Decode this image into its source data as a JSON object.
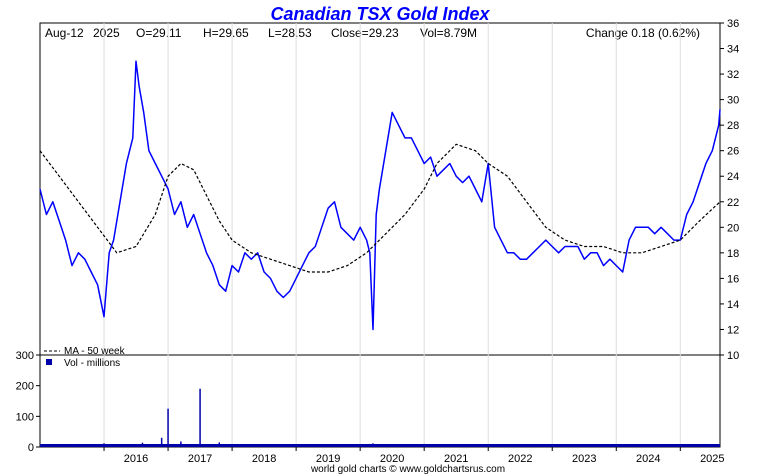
{
  "chart_data": {
    "type": "line",
    "title": "Canadian TSX Gold Index",
    "header": {
      "date": "Aug-12",
      "year": "2025",
      "open": "O=29.11",
      "high": "H=29.65",
      "low": "L=28.53",
      "close": "Close=29.23",
      "volume": "Vol=8.79M",
      "change": "Change 0.18 (0.62%)"
    },
    "colors": {
      "price": "#0000ff",
      "volume": "#0000aa",
      "ma": "#000000",
      "title": "#0000ff"
    },
    "x_tick_labels": [
      "2016",
      "2017",
      "2018",
      "2019",
      "2020",
      "2021",
      "2022",
      "2023",
      "2024",
      "2025"
    ],
    "x_range": [
      2015.0,
      2025.62
    ],
    "price_axis": {
      "ylim": [
        10,
        36
      ],
      "tick_labels": [
        "10",
        "12",
        "14",
        "16",
        "18",
        "20",
        "22",
        "24",
        "26",
        "28",
        "30",
        "32",
        "34",
        "36"
      ]
    },
    "volume_axis": {
      "ylim": [
        0,
        300
      ],
      "tick_labels": [
        "0",
        "100",
        "200",
        "300"
      ]
    },
    "legend": {
      "ma_label": "MA - 50 week",
      "vol_label": "Vol - millions",
      "position": "bottom-left"
    },
    "series": [
      {
        "name": "",
        "kind": "price",
        "x": [
          2015.0,
          2015.1,
          2015.2,
          2015.3,
          2015.4,
          2015.5,
          2015.6,
          2015.7,
          2015.8,
          2015.9,
          2016.0,
          2016.08,
          2016.15,
          2016.25,
          2016.35,
          2016.45,
          2016.5,
          2016.55,
          2016.62,
          2016.7,
          2016.8,
          2016.9,
          2017.0,
          2017.1,
          2017.2,
          2017.3,
          2017.4,
          2017.5,
          2017.6,
          2017.7,
          2017.8,
          2017.9,
          2018.0,
          2018.1,
          2018.2,
          2018.3,
          2018.4,
          2018.5,
          2018.6,
          2018.7,
          2018.8,
          2018.9,
          2019.0,
          2019.1,
          2019.2,
          2019.3,
          2019.4,
          2019.5,
          2019.6,
          2019.7,
          2019.8,
          2019.9,
          2020.0,
          2020.1,
          2020.15,
          2020.2,
          2020.25,
          2020.3,
          2020.4,
          2020.5,
          2020.6,
          2020.7,
          2020.8,
          2020.9,
          2021.0,
          2021.1,
          2021.2,
          2021.3,
          2021.4,
          2021.5,
          2021.6,
          2021.7,
          2021.8,
          2021.9,
          2022.0,
          2022.1,
          2022.2,
          2022.3,
          2022.4,
          2022.5,
          2022.6,
          2022.7,
          2022.8,
          2022.9,
          2023.0,
          2023.1,
          2023.2,
          2023.3,
          2023.4,
          2023.5,
          2023.6,
          2023.7,
          2023.8,
          2023.9,
          2024.0,
          2024.1,
          2024.2,
          2024.3,
          2024.4,
          2024.5,
          2024.6,
          2024.7,
          2024.8,
          2024.9,
          2025.0,
          2025.1,
          2025.2,
          2025.3,
          2025.4,
          2025.5,
          2025.55,
          2025.6,
          2025.62
        ],
        "y": [
          23,
          21,
          22,
          20.5,
          19,
          17,
          18,
          17.5,
          16.5,
          15.5,
          13,
          18,
          19,
          22,
          25,
          27,
          33,
          31,
          29,
          26,
          25,
          24,
          23,
          21,
          22,
          20,
          21,
          19.5,
          18,
          17,
          15.5,
          15,
          17,
          16.5,
          18,
          17.5,
          18,
          16.5,
          16,
          15,
          14.5,
          15,
          16,
          17,
          18,
          18.5,
          20,
          21.5,
          22,
          20,
          19.5,
          19,
          20,
          19,
          18,
          12,
          21,
          23,
          26,
          29,
          28,
          27,
          27,
          26,
          25,
          25.5,
          24,
          24.5,
          25,
          24,
          23.5,
          24,
          23,
          22,
          25,
          20,
          19,
          18,
          18,
          17.5,
          17.5,
          18,
          18.5,
          19,
          18.5,
          18,
          18.5,
          18.5,
          18.5,
          17.5,
          18,
          18,
          17,
          17.5,
          17,
          16.5,
          19,
          20,
          20,
          20,
          19.5,
          20,
          19.5,
          19,
          19,
          21,
          22,
          23.5,
          25,
          26,
          27,
          28,
          29.23
        ]
      },
      {
        "name": "MA - 50 week",
        "kind": "moving_average",
        "x": [
          2015.0,
          2015.3,
          2015.6,
          2015.9,
          2016.2,
          2016.5,
          2016.8,
          2017.0,
          2017.2,
          2017.4,
          2017.6,
          2017.8,
          2018.0,
          2018.3,
          2018.6,
          2018.9,
          2019.2,
          2019.5,
          2019.8,
          2020.1,
          2020.4,
          2020.7,
          2021.0,
          2021.2,
          2021.5,
          2021.8,
          2022.0,
          2022.3,
          2022.6,
          2022.9,
          2023.2,
          2023.5,
          2023.8,
          2024.1,
          2024.4,
          2024.7,
          2025.0,
          2025.3,
          2025.62
        ],
        "y": [
          26,
          24,
          22,
          20,
          18,
          18.5,
          21,
          24,
          25,
          24.5,
          22.5,
          20.5,
          19,
          18,
          17.5,
          17,
          16.5,
          16.5,
          17,
          18,
          19.5,
          21,
          23,
          25,
          26.5,
          26,
          25,
          24,
          22,
          20,
          19,
          18.5,
          18.5,
          18,
          18,
          18.5,
          19,
          20.5,
          22
        ]
      },
      {
        "name": "Vol - millions",
        "kind": "volume",
        "x": [
          2015.2,
          2015.6,
          2016.0,
          2016.3,
          2016.6,
          2016.9,
          2017.0,
          2017.2,
          2017.5,
          2017.8,
          2018.2,
          2018.6,
          2019.0,
          2019.4,
          2019.8,
          2020.2,
          2020.6,
          2021.0,
          2021.4,
          2021.8,
          2022.2,
          2022.6,
          2023.0,
          2023.4,
          2023.8,
          2024.2,
          2024.6,
          2025.0,
          2025.4
        ],
        "y": [
          8,
          10,
          12,
          9,
          14,
          30,
          125,
          18,
          190,
          15,
          8,
          7,
          6,
          7,
          6,
          12,
          8,
          10,
          9,
          8,
          9,
          7,
          7,
          6,
          7,
          6,
          7,
          8,
          10
        ]
      }
    ],
    "annotation_bottom": "world gold charts © www.goldchartsrus.com"
  }
}
